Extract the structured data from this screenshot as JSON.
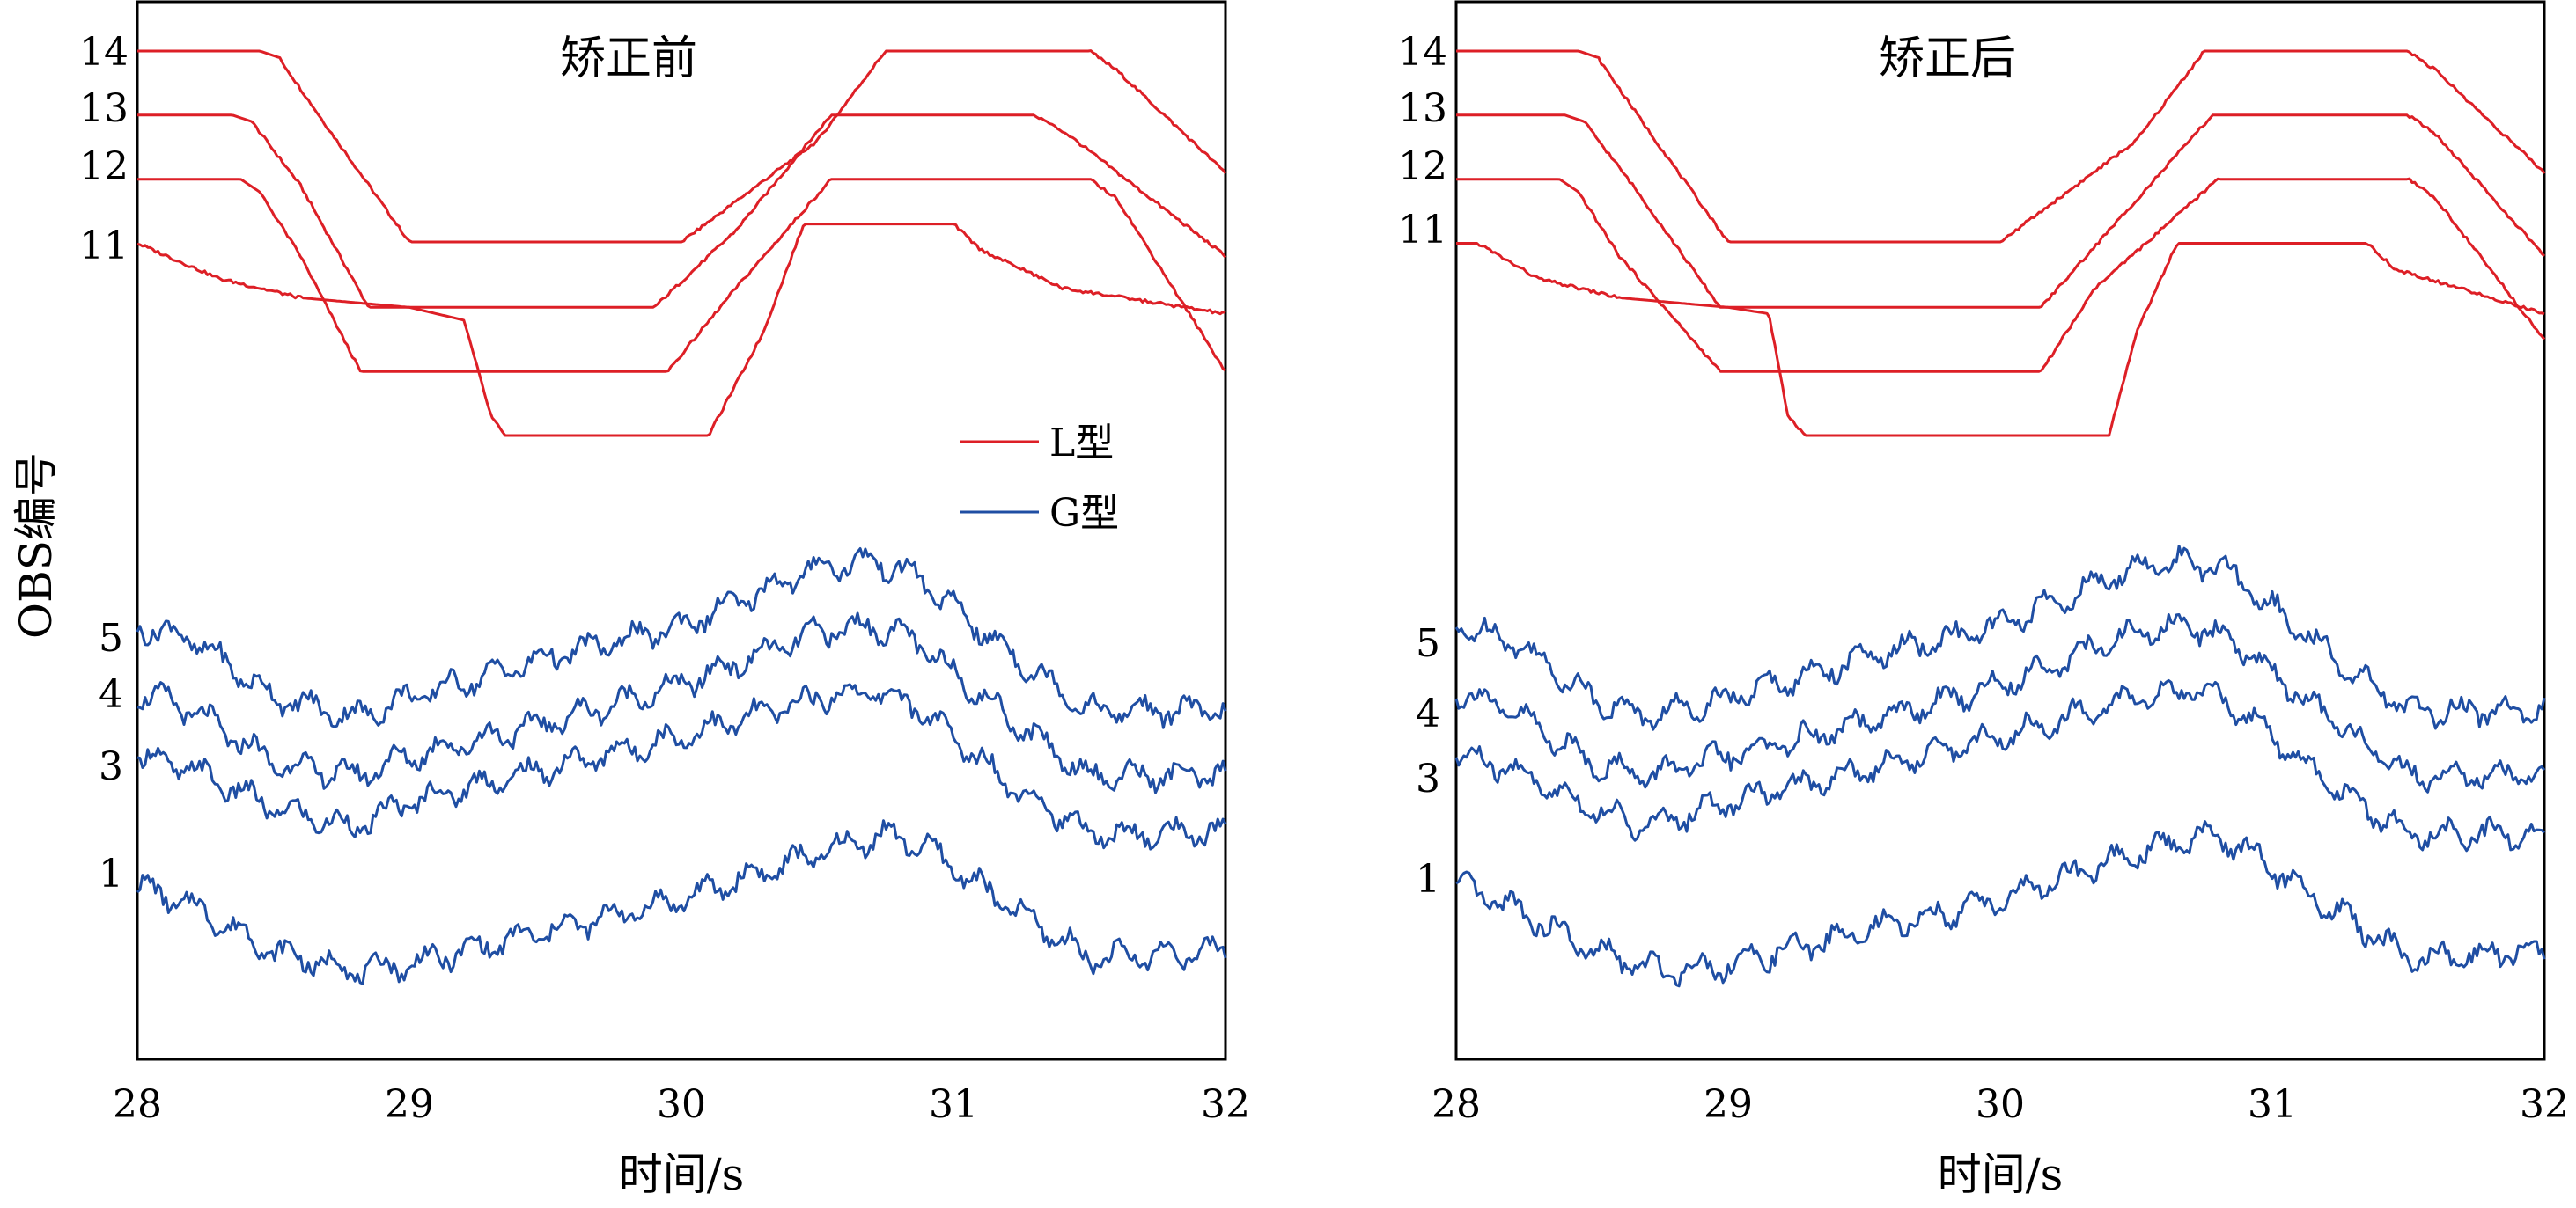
{
  "chart_data": [
    {
      "type": "line",
      "title": "矫正前",
      "xlabel": "时间/s",
      "ylabel": "OBS编号",
      "xlim": [
        28,
        32
      ],
      "x_ticks": [
        "28",
        "29",
        "30",
        "31",
        "32"
      ],
      "y_ticks": [
        "1",
        "3",
        "4",
        "5",
        "11",
        "12",
        "13",
        "14"
      ],
      "legend": {
        "placement": "center-right",
        "entries": [
          "L型",
          "G型"
        ]
      },
      "colors": {
        "L型": "#dd1f26",
        "G型": "#1f4ea3"
      },
      "series": [
        {
          "name": "L型",
          "label": "14",
          "x": [
            28.0,
            28.45,
            28.52,
            28.7,
            29.0,
            30.0,
            30.5,
            30.75,
            31.5,
            31.6,
            32.0
          ],
          "y": [
            14.0,
            14.0,
            13.9,
            12.8,
            11.02,
            11.02,
            12.6,
            14.0,
            14.0,
            13.7,
            12.1
          ]
        },
        {
          "name": "L型",
          "label": "13",
          "x": [
            28.0,
            28.35,
            28.42,
            28.6,
            28.85,
            29.9,
            30.2,
            30.55,
            31.3,
            31.42,
            32.0
          ],
          "y": [
            13.0,
            13.0,
            12.9,
            11.9,
            10.0,
            10.0,
            11.2,
            13.0,
            13.0,
            12.7,
            10.8
          ]
        },
        {
          "name": "L型",
          "label": "12",
          "x": [
            28.0,
            28.38,
            28.45,
            28.6,
            28.82,
            29.95,
            30.2,
            30.55,
            31.5,
            31.6,
            32.0
          ],
          "y": [
            12.0,
            12.0,
            11.8,
            10.8,
            9.0,
            9.0,
            10.3,
            12.0,
            12.0,
            11.7,
            9.0
          ]
        },
        {
          "name": "L型",
          "label": "11",
          "x": [
            28.0,
            28.3,
            28.6,
            29.0,
            29.2,
            29.3,
            29.35,
            30.1,
            30.3,
            30.45,
            31.0,
            31.1,
            31.4,
            32.0
          ],
          "y": [
            11.0,
            10.45,
            10.15,
            10.0,
            9.8,
            8.3,
            8.0,
            8.0,
            9.6,
            11.3,
            11.3,
            10.9,
            10.3,
            9.9
          ]
        },
        {
          "name": "G型",
          "label": "5",
          "x": [
            28.0,
            28.2,
            28.5,
            28.8,
            29.0,
            29.5,
            30.0,
            30.5,
            30.7,
            30.85,
            31.2,
            31.5,
            32.0
          ],
          "y": [
            5.0,
            4.8,
            3.9,
            3.6,
            3.9,
            4.5,
            5.0,
            5.9,
            6.0,
            5.8,
            4.6,
            3.7,
            3.7
          ]
        },
        {
          "name": "G型",
          "label": "4",
          "x": [
            28.0,
            28.2,
            28.5,
            28.8,
            29.0,
            29.5,
            30.0,
            30.5,
            30.7,
            30.85,
            31.2,
            31.5,
            32.0
          ],
          "y": [
            4.0,
            3.7,
            2.9,
            2.7,
            3.0,
            3.5,
            4.1,
            4.9,
            5.0,
            4.8,
            3.6,
            2.7,
            2.7
          ]
        },
        {
          "name": "G型",
          "label": "3",
          "x": [
            28.0,
            28.2,
            28.5,
            28.8,
            29.0,
            29.5,
            30.0,
            30.5,
            30.7,
            30.85,
            31.2,
            31.5,
            32.0
          ],
          "y": [
            3.0,
            2.8,
            2.2,
            1.9,
            2.3,
            2.8,
            3.3,
            3.9,
            4.0,
            3.8,
            2.6,
            1.8,
            1.8
          ]
        },
        {
          "name": "G型",
          "label": "1",
          "x": [
            28.0,
            28.2,
            28.5,
            28.8,
            29.0,
            29.5,
            30.0,
            30.5,
            30.75,
            30.9,
            31.2,
            31.5,
            32.0
          ],
          "y": [
            1.0,
            0.7,
            0.0,
            -0.3,
            -0.2,
            0.3,
            0.8,
            1.5,
            1.8,
            1.6,
            0.7,
            -0.1,
            0.0
          ]
        }
      ]
    },
    {
      "type": "line",
      "title": "矫正后",
      "xlabel": "时间/s",
      "xlim": [
        28,
        32
      ],
      "x_ticks": [
        "28",
        "29",
        "30",
        "31",
        "32"
      ],
      "y_ticks": [
        "1",
        "3",
        "4",
        "5",
        "11",
        "12",
        "13",
        "14"
      ],
      "series": [
        {
          "name": "L型",
          "label": "14",
          "x": [
            28.0,
            28.45,
            28.52,
            28.7,
            29.0,
            30.0,
            30.5,
            30.75,
            31.5,
            31.6,
            32.0
          ],
          "y": [
            14.0,
            14.0,
            13.9,
            12.8,
            11.02,
            11.02,
            12.6,
            14.0,
            14.0,
            13.7,
            12.1
          ]
        },
        {
          "name": "L型",
          "label": "13",
          "x": [
            28.0,
            28.4,
            28.47,
            28.65,
            28.97,
            30.15,
            30.4,
            30.78,
            31.5,
            31.6,
            32.0
          ],
          "y": [
            13.0,
            13.0,
            12.9,
            11.9,
            10.0,
            10.0,
            11.2,
            13.0,
            13.0,
            12.7,
            10.8
          ]
        },
        {
          "name": "L型",
          "label": "12",
          "x": [
            28.0,
            28.38,
            28.45,
            28.6,
            28.97,
            30.15,
            30.35,
            30.8,
            31.5,
            31.6,
            32.0
          ],
          "y": [
            12.0,
            12.0,
            11.8,
            10.8,
            9.0,
            9.0,
            10.3,
            12.0,
            12.0,
            11.7,
            9.5
          ]
        },
        {
          "name": "L型",
          "label": "11",
          "x": [
            28.0,
            28.08,
            28.3,
            28.6,
            29.0,
            29.15,
            29.22,
            29.28,
            30.4,
            30.5,
            30.65,
            31.35,
            31.45,
            32.0
          ],
          "y": [
            11.0,
            11.0,
            10.45,
            10.15,
            10.0,
            9.9,
            8.3,
            8.0,
            8.0,
            9.6,
            11.0,
            11.0,
            10.6,
            9.9
          ]
        },
        {
          "name": "G型",
          "label": "5",
          "x": [
            28.0,
            28.2,
            28.5,
            28.7,
            29.0,
            29.5,
            30.0,
            30.5,
            30.7,
            30.85,
            31.2,
            31.5,
            32.0
          ],
          "y": [
            5.0,
            4.8,
            3.9,
            3.6,
            3.9,
            4.5,
            5.0,
            5.9,
            6.0,
            5.8,
            4.6,
            3.7,
            3.7
          ]
        },
        {
          "name": "G型",
          "label": "4",
          "x": [
            28.0,
            28.2,
            28.5,
            28.7,
            29.0,
            29.5,
            30.0,
            30.5,
            30.7,
            30.85,
            31.2,
            31.5,
            32.0
          ],
          "y": [
            4.0,
            3.7,
            2.9,
            2.7,
            3.0,
            3.5,
            4.1,
            4.9,
            5.0,
            4.8,
            3.6,
            2.7,
            2.7
          ]
        },
        {
          "name": "G型",
          "label": "3",
          "x": [
            28.0,
            28.2,
            28.5,
            28.7,
            29.0,
            29.5,
            30.0,
            30.5,
            30.7,
            30.85,
            31.2,
            31.5,
            32.0
          ],
          "y": [
            3.0,
            2.8,
            2.2,
            1.9,
            2.3,
            2.8,
            3.3,
            3.9,
            4.0,
            3.8,
            2.6,
            1.8,
            1.8
          ]
        },
        {
          "name": "G型",
          "label": "1",
          "x": [
            28.0,
            28.2,
            28.5,
            28.75,
            29.0,
            29.5,
            30.0,
            30.5,
            30.75,
            30.9,
            31.2,
            31.5,
            32.0
          ],
          "y": [
            1.0,
            0.7,
            0.0,
            -0.3,
            -0.2,
            0.3,
            0.8,
            1.5,
            1.8,
            1.6,
            0.7,
            -0.1,
            0.0
          ]
        }
      ]
    }
  ]
}
